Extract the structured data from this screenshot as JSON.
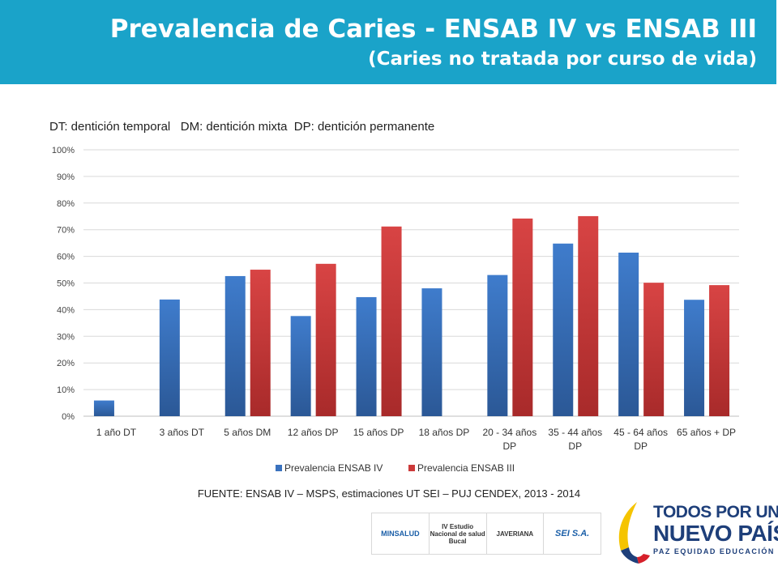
{
  "header": {
    "title": "Prevalencia de Caries - ENSAB IV vs ENSAB III",
    "subtitle": "(Caries no tratada por curso de vida)"
  },
  "note": "DT: dentición temporal   DM: dentición mixta  DP: dentición permanente",
  "source": "FUENTE: ENSAB IV – MSPS, estimaciones UT SEI – PUJ CENDEX, 2013 - 2014",
  "logos": {
    "minsalud": "MINSALUD",
    "estudio": "IV Estudio Nacional de salud Bucal",
    "javeriana": "JAVERIANA",
    "sei": "SEI S.A.",
    "brand_line1": "TODOS POR UN",
    "brand_line2": "NUEVO PAÍS",
    "brand_line3": "PAZ EQUIDAD EDUCACIÓN"
  },
  "colors": {
    "header": "#1aa3c9",
    "series_iv": "#3a72be",
    "series_iii": "#cc3a3a"
  },
  "chart_data": {
    "type": "bar",
    "categories": [
      "1 año DT",
      "3 años DT",
      "5 años DM",
      "12 años DP",
      "15 años DP",
      "18 años DP",
      "20 - 34 años DP",
      "35 - 44 años DP",
      "45 - 64 años DP",
      "65 años + DP"
    ],
    "series": [
      {
        "name": "Prevalencia ENSAB IV",
        "values": [
          5.9,
          43.8,
          52.6,
          37.6,
          44.7,
          48,
          53,
          64.8,
          61.4,
          43.7
        ]
      },
      {
        "name": "Prevalencia ENSAB III",
        "values": [
          null,
          null,
          55,
          57.2,
          71.2,
          null,
          74.2,
          75.1,
          50.1,
          49.2
        ]
      }
    ],
    "ylim": [
      0,
      100
    ],
    "yticks": [
      "0%",
      "10%",
      "20%",
      "30%",
      "40%",
      "50%",
      "60%",
      "70%",
      "80%",
      "90%",
      "100%"
    ],
    "grid": true,
    "legend_position": "bottom"
  }
}
